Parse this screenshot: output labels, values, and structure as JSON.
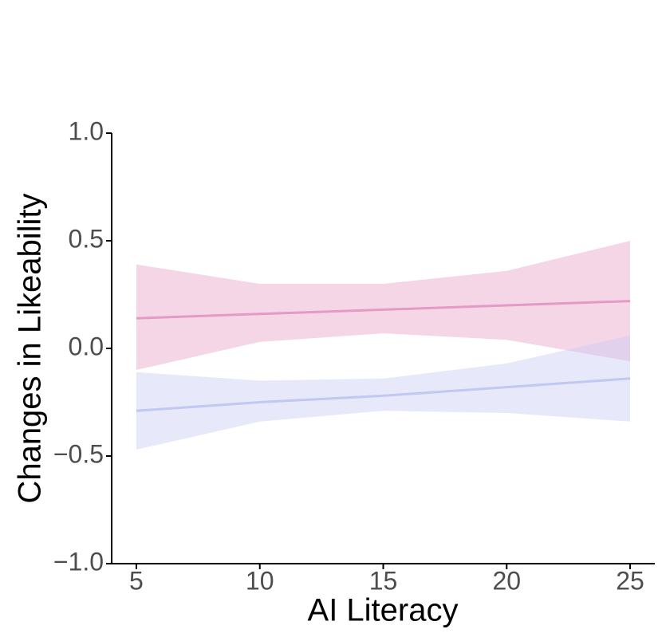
{
  "chart_data": {
    "type": "line",
    "x_label": "AI Literacy",
    "y_label": "Changes in Likeability",
    "x": [
      5,
      10,
      15,
      20,
      25
    ],
    "series": [
      {
        "color": "#e59ac5",
        "band_color": "#e8a4c8",
        "values": [
          0.14,
          0.16,
          0.18,
          0.2,
          0.22
        ],
        "upper": [
          0.39,
          0.3,
          0.3,
          0.36,
          0.5
        ],
        "lower": [
          -0.1,
          0.03,
          0.07,
          0.04,
          -0.06
        ]
      },
      {
        "color": "#c3c8f2",
        "band_color": "#c9cdf5",
        "values": [
          -0.29,
          -0.25,
          -0.22,
          -0.18,
          -0.14
        ],
        "upper": [
          -0.11,
          -0.15,
          -0.14,
          -0.07,
          0.06
        ],
        "lower": [
          -0.47,
          -0.34,
          -0.29,
          -0.3,
          -0.34
        ]
      }
    ],
    "xlim": [
      4,
      26
    ],
    "xticks": [
      5,
      10,
      15,
      20,
      25
    ],
    "ylim": [
      -1,
      1
    ],
    "yticks": [
      {
        "value": -1,
        "label": "−1.0"
      },
      {
        "value": -0.5,
        "label": "−0.5"
      },
      {
        "value": 0,
        "label": "0.0"
      },
      {
        "value": 0.5,
        "label": "0.5"
      },
      {
        "value": 1,
        "label": "1.0"
      }
    ],
    "grid": false
  }
}
